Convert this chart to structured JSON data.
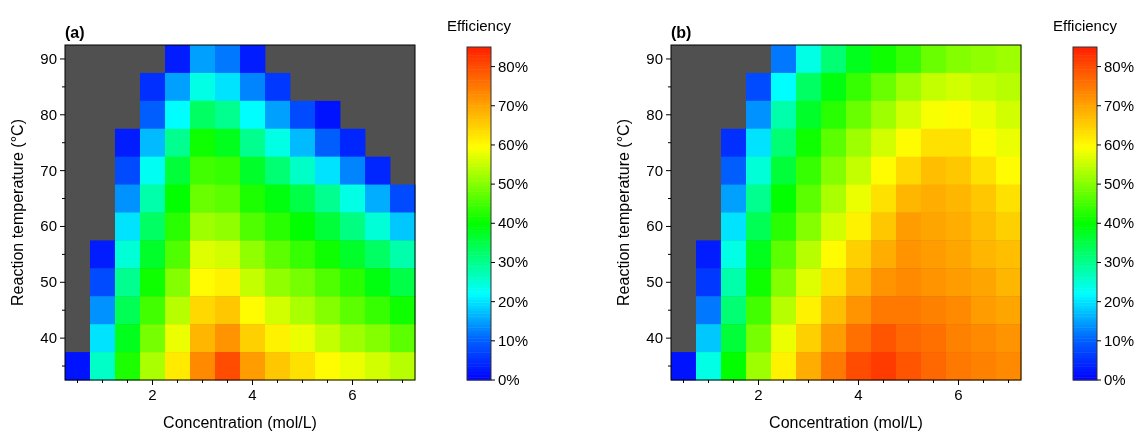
{
  "chart_data": [
    {
      "type": "heatmap",
      "title": "(a)",
      "xlabel": "Concentration (mol/L)",
      "ylabel": "Reaction temperature (°C)",
      "clabel": "Efficiency",
      "categories": [
        null,
        null,
        null,
        "2",
        null,
        null,
        null,
        "4",
        null,
        null,
        null,
        "6",
        null,
        null
      ],
      "y_categories": [
        "90",
        null,
        "80",
        null,
        "70",
        null,
        "60",
        null,
        "50",
        null,
        "40",
        null
      ],
      "cells": [
        [
          null,
          null,
          null,
          null,
          3,
          15,
          12,
          3,
          null,
          null,
          null,
          null,
          null,
          null
        ],
        [
          null,
          null,
          null,
          5,
          15,
          24,
          20,
          13,
          6,
          null,
          null,
          null,
          null,
          null
        ],
        [
          null,
          null,
          null,
          10,
          22,
          33,
          30,
          22,
          15,
          8,
          2,
          null,
          null,
          null
        ],
        [
          null,
          null,
          3,
          17,
          30,
          41,
          38,
          30,
          24,
          17,
          10,
          4,
          null,
          null
        ],
        [
          null,
          null,
          8,
          23,
          36,
          45,
          44,
          37,
          32,
          26,
          20,
          13,
          4,
          null
        ],
        [
          null,
          null,
          14,
          28,
          40,
          48,
          47,
          42,
          39,
          35,
          30,
          24,
          16,
          8
        ],
        [
          null,
          null,
          20,
          33,
          43,
          52,
          51,
          46,
          43,
          40,
          36,
          31,
          25,
          18
        ],
        [
          null,
          3,
          25,
          37,
          46,
          57,
          56,
          51,
          47,
          44,
          41,
          37,
          33,
          28
        ],
        [
          null,
          8,
          30,
          41,
          50,
          60,
          61,
          55,
          51,
          49,
          46,
          43,
          39,
          35
        ],
        [
          null,
          14,
          34,
          45,
          54,
          64,
          66,
          60,
          56,
          53,
          50,
          47,
          44,
          41
        ],
        [
          null,
          20,
          38,
          49,
          58,
          68,
          72,
          65,
          61,
          58,
          55,
          52,
          50,
          47
        ],
        [
          2,
          26,
          42,
          53,
          62,
          73,
          80,
          71,
          66,
          63,
          60,
          58,
          56,
          54
        ]
      ],
      "clim": [
        0,
        85
      ],
      "cticks": [
        {
          "value": 0,
          "label": "0%"
        },
        {
          "value": 10,
          "label": "10%"
        },
        {
          "value": 20,
          "label": "20%"
        },
        {
          "value": 30,
          "label": "30%"
        },
        {
          "value": 40,
          "label": "40%"
        },
        {
          "value": 50,
          "label": "50%"
        },
        {
          "value": 60,
          "label": "60%"
        },
        {
          "value": 70,
          "label": "70%"
        },
        {
          "value": 80,
          "label": "80%"
        }
      ]
    },
    {
      "type": "heatmap",
      "title": "(b)",
      "xlabel": "Concentration (mol/L)",
      "ylabel": "Reaction temperature (°C)",
      "clabel": "Efficiency",
      "categories": [
        null,
        null,
        null,
        "2",
        null,
        null,
        null,
        "4",
        null,
        null,
        null,
        "6",
        null,
        null
      ],
      "y_categories": [
        "90",
        null,
        "80",
        null,
        "70",
        null,
        "60",
        null,
        "50",
        null,
        "40",
        null
      ],
      "cells": [
        [
          null,
          null,
          null,
          null,
          12,
          24,
          32,
          38,
          41,
          44,
          48,
          50,
          51,
          52
        ],
        [
          null,
          null,
          null,
          8,
          22,
          33,
          39,
          44,
          48,
          52,
          55,
          56,
          55,
          54
        ],
        [
          null,
          null,
          null,
          14,
          28,
          37,
          43,
          48,
          52,
          56,
          59,
          60,
          58,
          56
        ],
        [
          null,
          null,
          5,
          20,
          32,
          41,
          47,
          52,
          56,
          60,
          63,
          63,
          60,
          58
        ],
        [
          null,
          null,
          10,
          25,
          36,
          44,
          50,
          55,
          60,
          64,
          67,
          66,
          63,
          60
        ],
        [
          null,
          null,
          15,
          30,
          40,
          47,
          53,
          58,
          63,
          68,
          69,
          68,
          66,
          63
        ],
        [
          null,
          null,
          20,
          34,
          43,
          50,
          56,
          61,
          66,
          71,
          70,
          69,
          67,
          65
        ],
        [
          null,
          3,
          24,
          38,
          47,
          54,
          60,
          65,
          69,
          72,
          71,
          70,
          68,
          67
        ],
        [
          null,
          6,
          28,
          41,
          50,
          57,
          63,
          68,
          72,
          73,
          72,
          71,
          70,
          68
        ],
        [
          null,
          12,
          32,
          45,
          54,
          61,
          67,
          72,
          75,
          75,
          74,
          73,
          71,
          70
        ],
        [
          null,
          18,
          36,
          49,
          58,
          65,
          71,
          76,
          79,
          77,
          76,
          74,
          73,
          72
        ],
        [
          2,
          24,
          40,
          52,
          61,
          69,
          75,
          80,
          82,
          79,
          77,
          75,
          74,
          73
        ]
      ],
      "clim": [
        0,
        85
      ],
      "cticks": [
        {
          "value": 0,
          "label": "0%"
        },
        {
          "value": 10,
          "label": "10%"
        },
        {
          "value": 20,
          "label": "20%"
        },
        {
          "value": 30,
          "label": "30%"
        },
        {
          "value": 40,
          "label": "40%"
        },
        {
          "value": 50,
          "label": "50%"
        },
        {
          "value": 60,
          "label": "60%"
        },
        {
          "value": 70,
          "label": "70%"
        },
        {
          "value": 80,
          "label": "80%"
        }
      ]
    }
  ]
}
